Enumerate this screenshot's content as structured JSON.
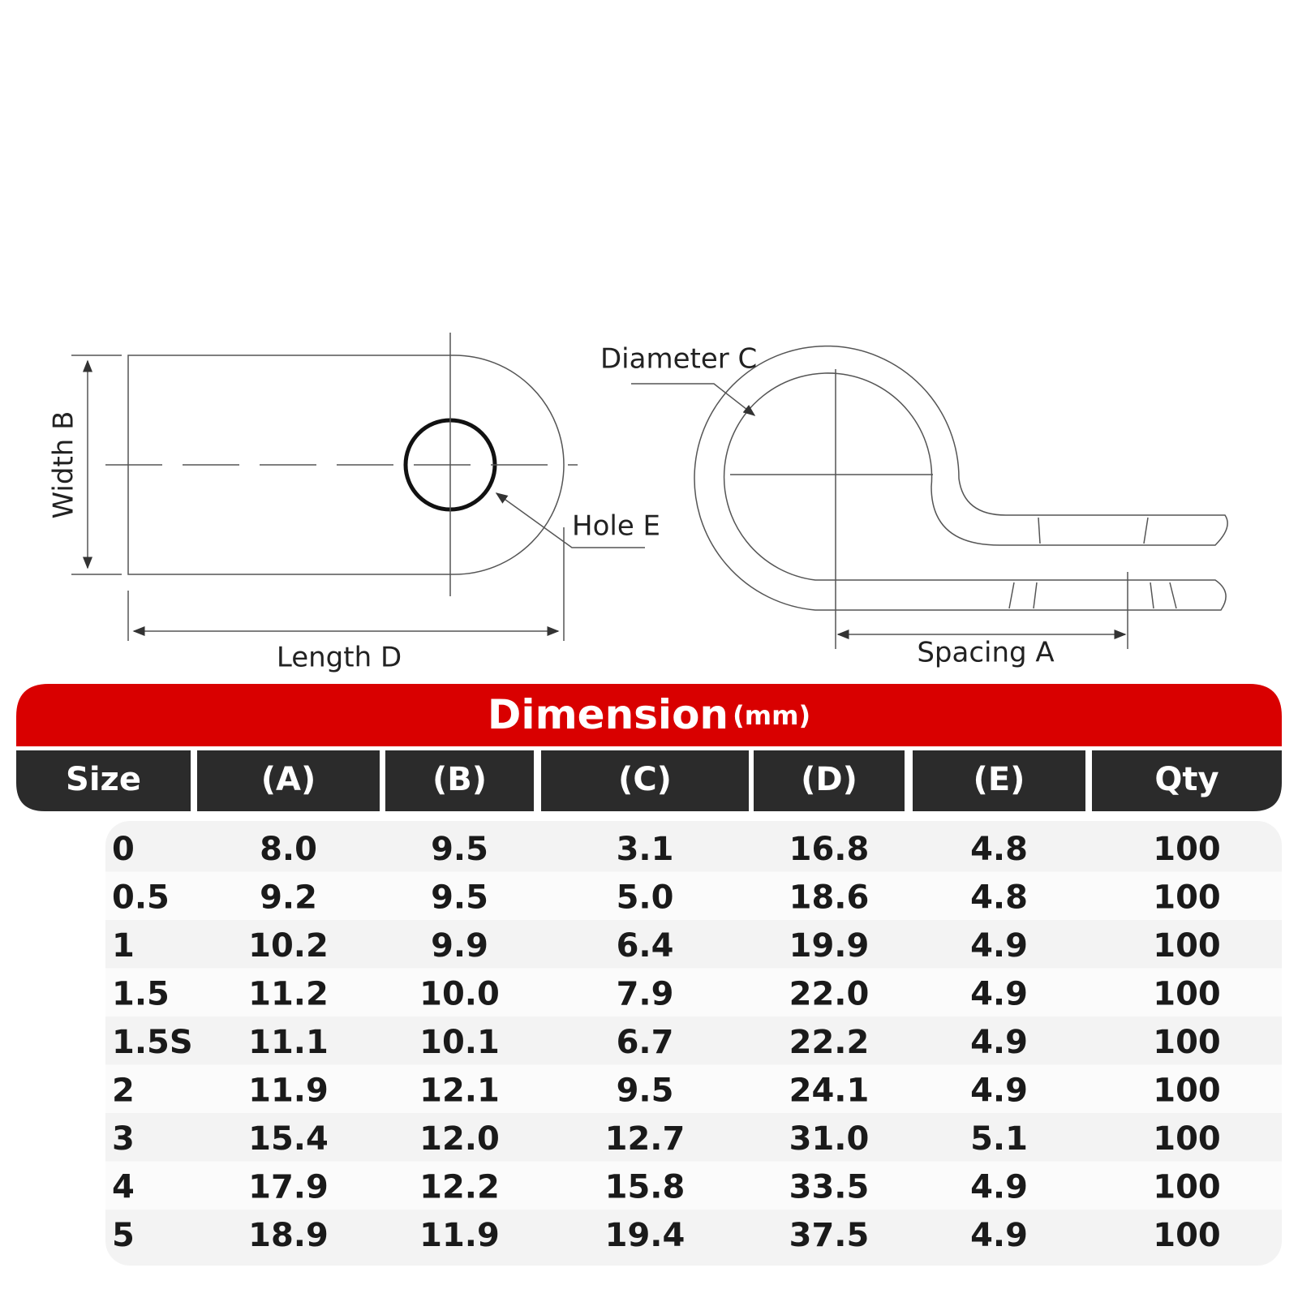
{
  "diagram": {
    "labels": {
      "width": "Width B",
      "length": "Length D",
      "hole": "Hole E",
      "diameter": "Diameter C",
      "spacing": "Spacing A"
    }
  },
  "table": {
    "title": "Dimension",
    "unit": "(mm)",
    "headers": [
      "Size",
      "(A)",
      "(B)",
      "(C)",
      "(D)",
      "(E)",
      "Qty"
    ],
    "rows": [
      [
        "0",
        "8.0",
        "9.5",
        "3.1",
        "16.8",
        "4.8",
        "100"
      ],
      [
        "0.5",
        "9.2",
        "9.5",
        "5.0",
        "18.6",
        "4.8",
        "100"
      ],
      [
        "1",
        "10.2",
        "9.9",
        "6.4",
        "19.9",
        "4.9",
        "100"
      ],
      [
        "1.5",
        "11.2",
        "10.0",
        "7.9",
        "22.0",
        "4.9",
        "100"
      ],
      [
        "1.5S",
        "11.1",
        "10.1",
        "6.7",
        "22.2",
        "4.9",
        "100"
      ],
      [
        "2",
        "11.9",
        "12.1",
        "9.5",
        "24.1",
        "4.9",
        "100"
      ],
      [
        "3",
        "15.4",
        "12.0",
        "12.7",
        "31.0",
        "5.1",
        "100"
      ],
      [
        "4",
        "17.9",
        "12.2",
        "15.8",
        "33.5",
        "4.9",
        "100"
      ],
      [
        "5",
        "18.9",
        "11.9",
        "19.4",
        "37.5",
        "4.9",
        "100"
      ]
    ]
  }
}
